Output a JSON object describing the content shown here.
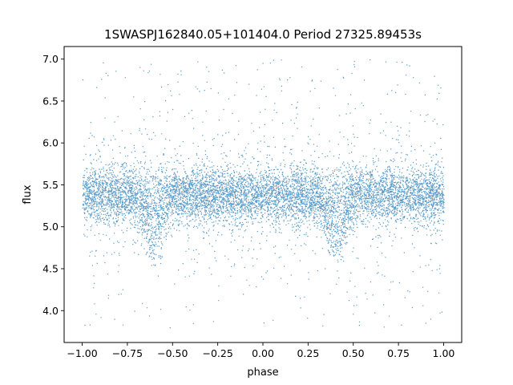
{
  "chart_data": {
    "type": "scatter",
    "title": "1SWASPJ162840.05+101404.0 Period 27325.89453s",
    "xlabel": "phase",
    "ylabel": "flux",
    "xlim": [
      -1.1,
      1.1
    ],
    "ylim": [
      3.62,
      7.15
    ],
    "xticks": [
      -1.0,
      -0.75,
      -0.5,
      -0.25,
      0.0,
      0.25,
      0.5,
      0.75,
      1.0
    ],
    "xtick_labels": [
      "−1.00",
      "−0.75",
      "−0.50",
      "−0.25",
      "0.00",
      "0.25",
      "0.50",
      "0.75",
      "1.00"
    ],
    "yticks": [
      4.0,
      4.5,
      5.0,
      5.5,
      6.0,
      6.5,
      7.0
    ],
    "ytick_labels": [
      "4.0",
      "4.5",
      "5.0",
      "5.5",
      "6.0",
      "6.5",
      "7.0"
    ],
    "grid": false,
    "marker_color": "#1f77b4",
    "x_range": [
      -1.0,
      1.0
    ],
    "baseline_flux": 5.38,
    "core_spread": 0.17,
    "flux_range": [
      3.8,
      7.0
    ],
    "dips": [
      {
        "phase": -0.6,
        "depth": 0.5
      },
      {
        "phase": 0.4,
        "depth": 0.5
      }
    ]
  }
}
